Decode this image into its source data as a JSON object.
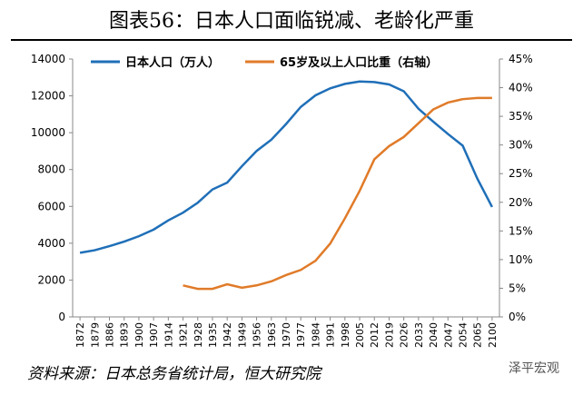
{
  "title": "图表56：日本人口面临锐减、老龄化严重",
  "source": "资料来源：日本总务省统计局，恒大研究院",
  "watermark": "泽平宏观",
  "chart_data": {
    "type": "line",
    "categories": [
      "1872",
      "1879",
      "1886",
      "1893",
      "1900",
      "1907",
      "1914",
      "1921",
      "1928",
      "1935",
      "1942",
      "1949",
      "1956",
      "1963",
      "1970",
      "1977",
      "1984",
      "1991",
      "1998",
      "2005",
      "2012",
      "2019",
      "2026",
      "2033",
      "2040",
      "2047",
      "2054",
      "2065",
      "2100"
    ],
    "series": [
      {
        "name": "日本人口（万人）",
        "color": "#1f6fb8",
        "axis": "y",
        "values": [
          3480,
          3620,
          3840,
          4090,
          4380,
          4740,
          5240,
          5660,
          6200,
          6920,
          7290,
          8180,
          9010,
          9620,
          10470,
          11400,
          12030,
          12410,
          12650,
          12780,
          12750,
          12620,
          12250,
          11300,
          10600,
          9930,
          9300,
          7500,
          5970
        ]
      },
      {
        "name": "65岁及以上人口比重（右轴）",
        "color": "#e07b29",
        "axis": "y2",
        "values": [
          null,
          null,
          null,
          null,
          null,
          null,
          null,
          5.5,
          4.9,
          4.9,
          5.7,
          5.1,
          5.5,
          6.2,
          7.3,
          8.2,
          9.8,
          12.8,
          17.2,
          22,
          27.5,
          29.8,
          31.4,
          33.8,
          36.2,
          37.4,
          38,
          38.2,
          38.2
        ]
      }
    ],
    "ylim": [
      0,
      14000
    ],
    "yticks": [
      0,
      2000,
      4000,
      6000,
      8000,
      10000,
      12000,
      14000
    ],
    "y2lim": [
      0,
      45
    ],
    "y2ticks": [
      {
        "value": 0,
        "label": "0%"
      },
      {
        "value": 5,
        "label": "5%"
      },
      {
        "value": 10,
        "label": "10%"
      },
      {
        "value": 15,
        "label": "15%"
      },
      {
        "value": 20,
        "label": "20%"
      },
      {
        "value": 25,
        "label": "25%"
      },
      {
        "value": 30,
        "label": "30%"
      },
      {
        "value": 35,
        "label": "35%"
      },
      {
        "value": 40,
        "label": "40%"
      },
      {
        "value": 45,
        "label": "45%"
      }
    ],
    "legend": "top"
  }
}
